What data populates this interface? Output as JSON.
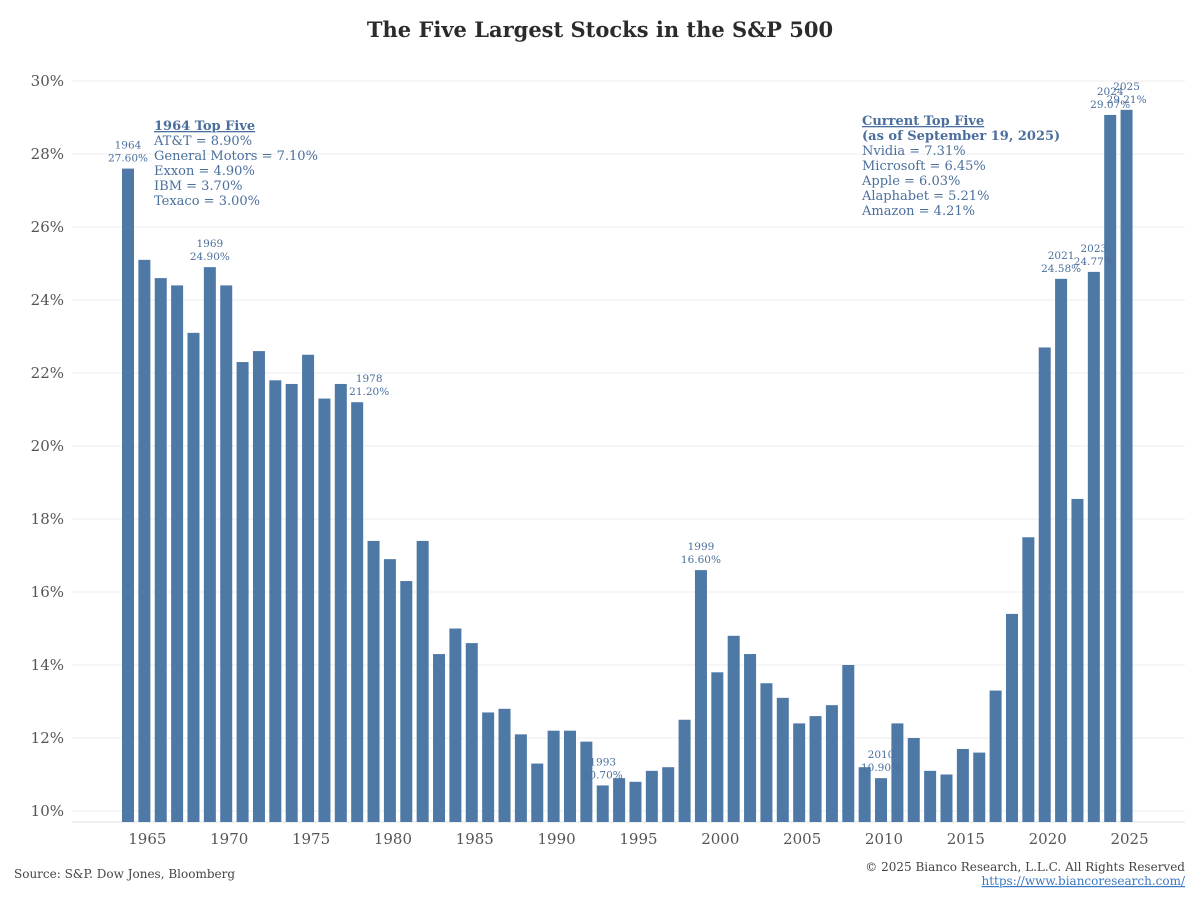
{
  "chart_data": {
    "type": "bar",
    "title": "The Five Largest Stocks in the S&P 500",
    "xlabel": "",
    "ylabel": "",
    "ylim": [
      10,
      30
    ],
    "yticks": [
      "10%",
      "12%",
      "14%",
      "16%",
      "18%",
      "20%",
      "22%",
      "24%",
      "26%",
      "28%",
      "30%"
    ],
    "ytick_values": [
      10,
      12,
      14,
      16,
      18,
      20,
      22,
      24,
      26,
      28,
      30
    ],
    "xticks": [
      "1965",
      "1970",
      "1975",
      "1980",
      "1985",
      "1990",
      "1995",
      "2000",
      "2005",
      "2010",
      "2015",
      "2020",
      "2025"
    ],
    "xtick_values": [
      1965,
      1970,
      1975,
      1980,
      1985,
      1990,
      1995,
      2000,
      2005,
      2010,
      2015,
      2020,
      2025
    ],
    "grid": true,
    "bar_color": "#4e79a7",
    "years": [
      1964,
      1965,
      1966,
      1967,
      1968,
      1969,
      1970,
      1971,
      1972,
      1973,
      1974,
      1975,
      1976,
      1977,
      1978,
      1979,
      1980,
      1981,
      1982,
      1983,
      1984,
      1985,
      1986,
      1987,
      1988,
      1989,
      1990,
      1991,
      1992,
      1993,
      1994,
      1995,
      1996,
      1997,
      1998,
      1999,
      2000,
      2001,
      2002,
      2003,
      2004,
      2005,
      2006,
      2007,
      2008,
      2009,
      2010,
      2011,
      2012,
      2013,
      2014,
      2015,
      2016,
      2017,
      2018,
      2019,
      2020,
      2021,
      2022,
      2023,
      2024,
      2025
    ],
    "values": [
      27.6,
      25.1,
      24.6,
      24.4,
      23.1,
      24.9,
      24.4,
      22.3,
      22.6,
      21.8,
      21.7,
      22.5,
      21.3,
      21.7,
      21.2,
      17.4,
      16.9,
      16.3,
      17.4,
      14.3,
      15.0,
      14.6,
      12.7,
      12.8,
      12.1,
      11.3,
      12.2,
      12.2,
      11.9,
      10.7,
      10.9,
      10.8,
      11.1,
      11.2,
      12.5,
      16.6,
      13.8,
      14.8,
      14.3,
      13.5,
      13.1,
      12.4,
      12.6,
      12.9,
      14.0,
      11.2,
      10.9,
      12.4,
      12.0,
      11.1,
      11.0,
      11.7,
      11.6,
      13.3,
      15.4,
      17.5,
      22.7,
      24.58,
      18.55,
      24.77,
      29.07,
      29.21
    ],
    "data_labels": [
      {
        "year": 1964,
        "line1": "1964",
        "line2": "27.60%"
      },
      {
        "year": 1969,
        "line1": "1969",
        "line2": "24.90%"
      },
      {
        "year": 1978,
        "line1": "1978",
        "line2": "21.20%"
      },
      {
        "year": 1993,
        "line1": "1993",
        "line2": "10.70%"
      },
      {
        "year": 1999,
        "line1": "1999",
        "line2": "16.60%"
      },
      {
        "year": 2010,
        "line1": "2010",
        "line2": "10.90%"
      },
      {
        "year": 2021,
        "line1": "2021",
        "line2": "24.58%"
      },
      {
        "year": 2023,
        "line1": "2023",
        "line2": "24.77%"
      },
      {
        "year": 2024,
        "line1": "2024",
        "line2": "29.07%"
      },
      {
        "year": 2025,
        "line1": "2025",
        "line2": "29.21%"
      }
    ],
    "annotations": {
      "left_title": "1964 Top Five",
      "left_items": [
        "AT&T = 8.90%",
        "General Motors = 7.10%",
        "Exxon = 4.90%",
        "IBM = 3.70%",
        "Texaco = 3.00%"
      ],
      "right_title": "Current Top Five",
      "right_subtitle": "(as of September 19, 2025)",
      "right_items": [
        "Nvidia = 7.31%",
        "Microsoft = 6.45%",
        "Apple = 6.03%",
        "Alaphabet = 5.21%",
        "Amazon = 4.21%"
      ]
    }
  },
  "footer": {
    "source": "Source: S&P. Dow Jones, Bloomberg",
    "copyright": "© 2025 Bianco Research, L.L.C. All Rights Reserved",
    "url": "https://www.biancoresearch.com/"
  }
}
